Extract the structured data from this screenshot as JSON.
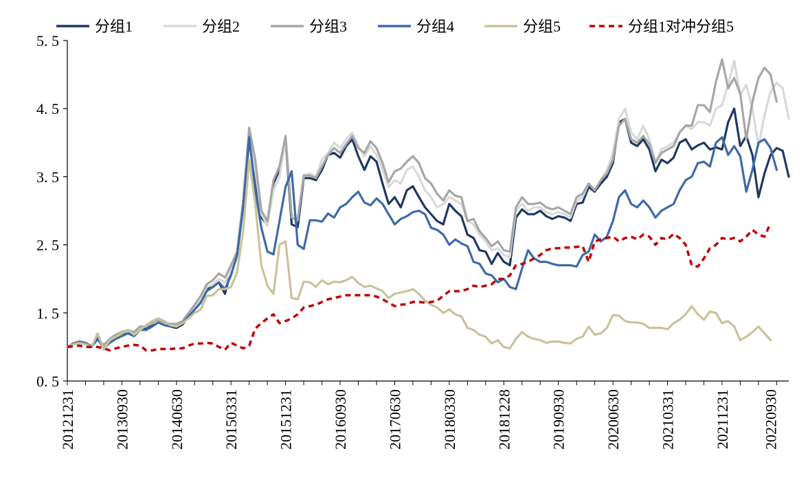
{
  "chart_data": {
    "type": "line",
    "title": "",
    "xlabel": "",
    "ylabel": "",
    "ylim": [
      0.5,
      5.5
    ],
    "yticks": [
      "0.5",
      "1.5",
      "2.5",
      "3.5",
      "4.5",
      "5.5"
    ],
    "x_tick_labels": [
      "20121231",
      "20130930",
      "20140630",
      "20150331",
      "20151231",
      "20160930",
      "20170630",
      "20180330",
      "20181228",
      "20190930",
      "20200630",
      "20210331",
      "20211231",
      "20220930"
    ],
    "legend": "top",
    "series": [
      {
        "name": "分组1",
        "color": "#1f3864",
        "dash": false,
        "values": [
          1.0,
          1.05,
          1.08,
          1.05,
          1.02,
          1.13,
          1.0,
          1.08,
          1.12,
          1.18,
          1.2,
          1.18,
          1.3,
          1.26,
          1.32,
          1.38,
          1.33,
          1.3,
          1.28,
          1.33,
          1.45,
          1.55,
          1.65,
          1.85,
          1.88,
          1.95,
          1.78,
          2.12,
          2.3,
          3.1,
          4.02,
          3.5,
          2.9,
          2.8,
          3.4,
          3.6,
          4.05,
          2.8,
          2.76,
          3.48,
          3.48,
          3.45,
          3.6,
          3.82,
          3.85,
          3.78,
          3.95,
          4.05,
          3.8,
          3.6,
          3.8,
          3.72,
          3.4,
          3.1,
          3.2,
          3.05,
          3.3,
          3.36,
          3.2,
          3.05,
          2.95,
          2.85,
          2.8,
          3.1,
          3.0,
          2.92,
          2.65,
          2.6,
          2.42,
          2.4,
          2.22,
          2.38,
          2.25,
          2.2,
          2.9,
          3.02,
          2.95,
          2.95,
          3.0,
          2.92,
          2.88,
          2.92,
          2.9,
          2.85,
          3.1,
          3.12,
          3.35,
          3.28,
          3.4,
          3.5,
          3.7,
          4.3,
          4.35,
          4.0,
          3.95,
          4.05,
          3.9,
          3.58,
          3.75,
          3.7,
          3.78,
          4.0,
          4.05,
          3.9,
          3.96,
          4.0,
          3.9,
          3.93,
          3.9,
          4.3,
          4.5,
          3.95,
          4.1,
          3.82,
          3.2,
          3.55,
          3.82,
          3.92,
          3.88,
          3.5
        ]
      },
      {
        "name": "分组2",
        "color": "#d9d9d9",
        "dash": false,
        "values": [
          1.0,
          1.04,
          1.06,
          1.04,
          1.02,
          1.1,
          1.02,
          1.1,
          1.15,
          1.2,
          1.24,
          1.2,
          1.28,
          1.3,
          1.35,
          1.38,
          1.35,
          1.32,
          1.32,
          1.35,
          1.45,
          1.58,
          1.7,
          1.88,
          1.92,
          2.0,
          1.95,
          2.12,
          2.3,
          3.1,
          4.1,
          3.6,
          2.95,
          2.78,
          3.3,
          3.5,
          4.05,
          2.95,
          2.9,
          3.5,
          3.55,
          3.5,
          3.75,
          3.85,
          4.0,
          3.92,
          4.05,
          4.15,
          3.95,
          3.8,
          3.95,
          3.82,
          3.6,
          3.35,
          3.45,
          3.4,
          3.6,
          3.65,
          3.5,
          3.3,
          3.2,
          3.05,
          3.1,
          3.2,
          3.15,
          3.1,
          2.85,
          2.8,
          2.65,
          2.55,
          2.42,
          2.45,
          2.35,
          2.32,
          3.0,
          3.1,
          3.0,
          3.05,
          3.05,
          2.98,
          2.95,
          2.98,
          2.95,
          2.9,
          3.15,
          3.2,
          3.4,
          3.3,
          3.45,
          3.6,
          3.85,
          4.35,
          4.5,
          4.15,
          4.05,
          4.25,
          4.05,
          3.72,
          3.9,
          3.95,
          4.0,
          4.15,
          4.25,
          4.2,
          4.3,
          4.3,
          4.25,
          4.5,
          4.55,
          4.85,
          5.2,
          4.7,
          4.85,
          4.5,
          3.95,
          4.4,
          4.75,
          4.88,
          4.8,
          4.35
        ]
      },
      {
        "name": "分组3",
        "color": "#a6a6a6",
        "dash": false,
        "values": [
          1.0,
          1.04,
          1.07,
          1.05,
          1.02,
          1.12,
          1.03,
          1.12,
          1.18,
          1.22,
          1.25,
          1.22,
          1.3,
          1.3,
          1.36,
          1.4,
          1.36,
          1.34,
          1.34,
          1.38,
          1.5,
          1.62,
          1.75,
          1.92,
          1.98,
          2.08,
          2.02,
          2.2,
          2.4,
          3.15,
          4.22,
          3.75,
          3.0,
          2.85,
          3.45,
          3.65,
          4.1,
          2.9,
          2.86,
          3.52,
          3.52,
          3.48,
          3.65,
          3.82,
          3.92,
          3.85,
          3.98,
          4.1,
          3.92,
          3.85,
          4.02,
          3.92,
          3.7,
          3.42,
          3.58,
          3.62,
          3.72,
          3.8,
          3.7,
          3.48,
          3.4,
          3.25,
          3.15,
          3.3,
          3.22,
          3.2,
          2.85,
          2.88,
          2.7,
          2.6,
          2.48,
          2.55,
          2.42,
          2.4,
          3.05,
          3.2,
          3.1,
          3.1,
          3.12,
          3.05,
          3.02,
          3.05,
          3.0,
          2.95,
          3.2,
          3.25,
          3.4,
          3.3,
          3.45,
          3.55,
          3.75,
          4.25,
          4.35,
          4.05,
          4.0,
          4.1,
          3.98,
          3.7,
          3.85,
          3.9,
          3.95,
          4.15,
          4.25,
          4.25,
          4.55,
          4.55,
          4.45,
          4.9,
          5.22,
          4.8,
          4.95,
          4.72,
          4.05,
          4.6,
          4.95,
          5.1,
          5.0,
          4.6
        ]
      },
      {
        "name": "分组4",
        "color": "#3d6aa8",
        "dash": false,
        "values": [
          1.0,
          1.04,
          1.08,
          1.06,
          1.0,
          1.12,
          0.98,
          1.06,
          1.12,
          1.16,
          1.2,
          1.16,
          1.25,
          1.25,
          1.3,
          1.36,
          1.32,
          1.3,
          1.3,
          1.35,
          1.45,
          1.55,
          1.65,
          1.82,
          1.88,
          1.95,
          1.85,
          2.05,
          2.35,
          3.05,
          4.08,
          3.3,
          2.75,
          2.4,
          2.36,
          2.85,
          3.35,
          3.58,
          2.5,
          2.44,
          2.86,
          2.86,
          2.84,
          2.96,
          2.9,
          3.05,
          3.1,
          3.2,
          3.28,
          3.12,
          3.08,
          3.18,
          3.1,
          2.95,
          2.8,
          2.88,
          2.92,
          2.98,
          3.0,
          2.95,
          2.75,
          2.72,
          2.65,
          2.5,
          2.58,
          2.52,
          2.48,
          2.25,
          2.22,
          2.08,
          2.05,
          1.95,
          2.0,
          1.88,
          1.85,
          2.15,
          2.42,
          2.3,
          2.25,
          2.25,
          2.22,
          2.2,
          2.2,
          2.2,
          2.18,
          2.35,
          2.4,
          2.65,
          2.55,
          2.62,
          2.85,
          3.2,
          3.3,
          3.1,
          3.05,
          3.15,
          3.05,
          2.9,
          3.0,
          3.05,
          3.1,
          3.3,
          3.45,
          3.5,
          3.7,
          3.72,
          3.65,
          4.0,
          4.08,
          3.82,
          3.95,
          3.8,
          3.28,
          3.6,
          4.0,
          4.05,
          3.92,
          3.6
        ]
      },
      {
        "name": "分组5",
        "color": "#c9c29b",
        "dash": false,
        "values": [
          1.0,
          1.04,
          1.06,
          1.04,
          1.0,
          1.2,
          0.96,
          1.1,
          1.15,
          1.2,
          1.25,
          1.18,
          1.25,
          1.32,
          1.38,
          1.42,
          1.38,
          1.32,
          1.3,
          1.35,
          1.42,
          1.5,
          1.55,
          1.75,
          1.76,
          1.85,
          1.85,
          1.88,
          2.1,
          2.7,
          3.75,
          3.1,
          2.2,
          1.9,
          1.78,
          2.5,
          2.55,
          1.72,
          1.7,
          1.96,
          1.95,
          1.88,
          1.98,
          1.92,
          1.96,
          1.95,
          1.98,
          2.03,
          1.94,
          1.88,
          1.9,
          1.86,
          1.82,
          1.72,
          1.78,
          1.8,
          1.82,
          1.85,
          1.78,
          1.68,
          1.62,
          1.58,
          1.5,
          1.55,
          1.48,
          1.45,
          1.28,
          1.25,
          1.18,
          1.15,
          1.05,
          1.1,
          1.0,
          0.98,
          1.12,
          1.22,
          1.15,
          1.12,
          1.1,
          1.06,
          1.08,
          1.08,
          1.06,
          1.05,
          1.12,
          1.15,
          1.3,
          1.18,
          1.2,
          1.28,
          1.47,
          1.46,
          1.38,
          1.36,
          1.36,
          1.34,
          1.28,
          1.28,
          1.28,
          1.26,
          1.35,
          1.4,
          1.48,
          1.6,
          1.48,
          1.4,
          1.52,
          1.5,
          1.35,
          1.38,
          1.3,
          1.1,
          1.15,
          1.22,
          1.3,
          1.2,
          1.1
        ]
      },
      {
        "name": "分组1对冲分组5",
        "color": "#c00000",
        "dash": true,
        "values": [
          1.0,
          1.01,
          1.02,
          1.0,
          1.0,
          1.0,
          0.98,
          0.95,
          0.98,
          1.0,
          1.02,
          1.03,
          1.02,
          0.95,
          0.95,
          0.97,
          0.97,
          0.97,
          0.98,
          0.98,
          1.02,
          1.05,
          1.05,
          1.06,
          1.05,
          1.0,
          0.96,
          1.06,
          1.02,
          0.98,
          1.02,
          1.27,
          1.35,
          1.42,
          1.48,
          1.35,
          1.38,
          1.42,
          1.48,
          1.58,
          1.6,
          1.62,
          1.66,
          1.7,
          1.72,
          1.74,
          1.76,
          1.76,
          1.76,
          1.76,
          1.76,
          1.74,
          1.7,
          1.65,
          1.6,
          1.62,
          1.63,
          1.66,
          1.66,
          1.65,
          1.66,
          1.68,
          1.75,
          1.82,
          1.82,
          1.82,
          1.85,
          1.9,
          1.88,
          1.9,
          1.92,
          2.0,
          2.0,
          2.05,
          2.2,
          2.22,
          2.25,
          2.3,
          2.35,
          2.42,
          2.45,
          2.45,
          2.46,
          2.46,
          2.47,
          2.48,
          2.25,
          2.55,
          2.58,
          2.6,
          2.62,
          2.55,
          2.6,
          2.62,
          2.58,
          2.65,
          2.62,
          2.5,
          2.6,
          2.58,
          2.66,
          2.6,
          2.5,
          2.2,
          2.18,
          2.3,
          2.45,
          2.5,
          2.6,
          2.58,
          2.6,
          2.55,
          2.62,
          2.72,
          2.65,
          2.62,
          2.82
        ]
      }
    ]
  }
}
